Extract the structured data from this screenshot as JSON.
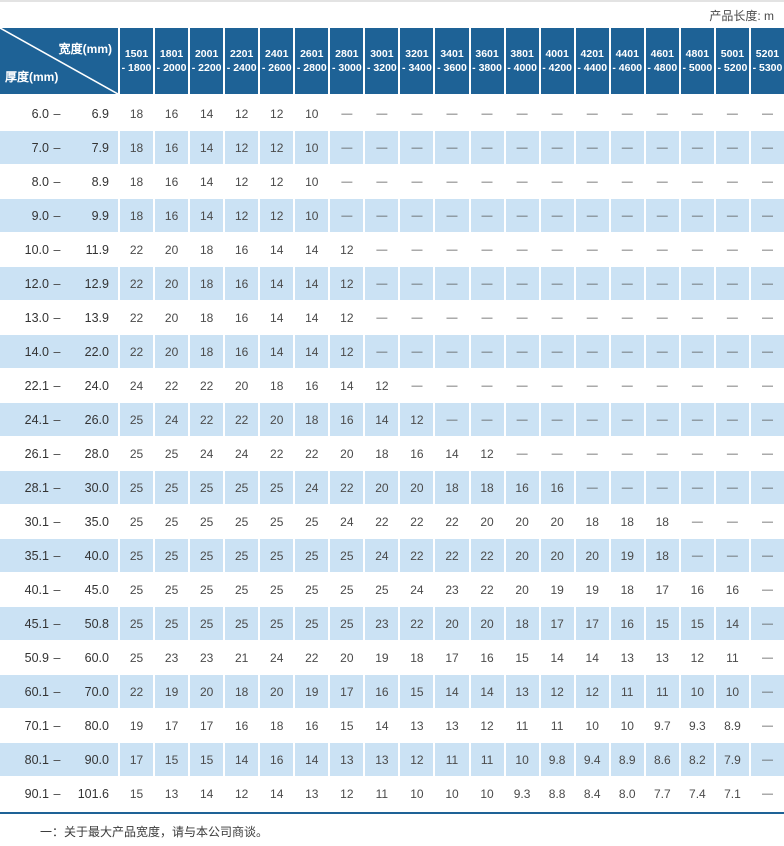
{
  "top_note": "产品长度: m",
  "footnote": "一：关于最大产品宽度，请与本公司商谈。",
  "colors": {
    "header_bg": "#1e6296",
    "row_alt_bg": "#cbe2f4",
    "accent_border": "#1e6296"
  },
  "table": {
    "width_label": "宽度(mm)",
    "thickness_label": "厚度(mm)",
    "dash": "—",
    "columns": [
      {
        "from": "1501",
        "to": "1800"
      },
      {
        "from": "1801",
        "to": "2000"
      },
      {
        "from": "2001",
        "to": "2200"
      },
      {
        "from": "2201",
        "to": "2400"
      },
      {
        "from": "2401",
        "to": "2600"
      },
      {
        "from": "2601",
        "to": "2800"
      },
      {
        "from": "2801",
        "to": "3000"
      },
      {
        "from": "3001",
        "to": "3200"
      },
      {
        "from": "3201",
        "to": "3400"
      },
      {
        "from": "3401",
        "to": "3600"
      },
      {
        "from": "3601",
        "to": "3800"
      },
      {
        "from": "3801",
        "to": "4000"
      },
      {
        "from": "4001",
        "to": "4200"
      },
      {
        "from": "4201",
        "to": "4400"
      },
      {
        "from": "4401",
        "to": "4600"
      },
      {
        "from": "4601",
        "to": "4800"
      },
      {
        "from": "4801",
        "to": "5000"
      },
      {
        "from": "5001",
        "to": "5200"
      },
      {
        "from": "5201",
        "to": "5300"
      }
    ],
    "rows": [
      {
        "lo": "6.0",
        "hi": "6.9",
        "values": [
          "18",
          "16",
          "14",
          "12",
          "12",
          "10",
          "—",
          "—",
          "—",
          "—",
          "—",
          "—",
          "—",
          "—",
          "—",
          "—",
          "—",
          "—",
          "—"
        ]
      },
      {
        "lo": "7.0",
        "hi": "7.9",
        "values": [
          "18",
          "16",
          "14",
          "12",
          "12",
          "10",
          "—",
          "—",
          "—",
          "—",
          "—",
          "—",
          "—",
          "—",
          "—",
          "—",
          "—",
          "—",
          "—"
        ]
      },
      {
        "lo": "8.0",
        "hi": "8.9",
        "values": [
          "18",
          "16",
          "14",
          "12",
          "12",
          "10",
          "—",
          "—",
          "—",
          "—",
          "—",
          "—",
          "—",
          "—",
          "—",
          "—",
          "—",
          "—",
          "—"
        ]
      },
      {
        "lo": "9.0",
        "hi": "9.9",
        "values": [
          "18",
          "16",
          "14",
          "12",
          "12",
          "10",
          "—",
          "—",
          "—",
          "—",
          "—",
          "—",
          "—",
          "—",
          "—",
          "—",
          "—",
          "—",
          "—"
        ]
      },
      {
        "lo": "10.0",
        "hi": "11.9",
        "values": [
          "22",
          "20",
          "18",
          "16",
          "14",
          "14",
          "12",
          "—",
          "—",
          "—",
          "—",
          "—",
          "—",
          "—",
          "—",
          "—",
          "—",
          "—",
          "—"
        ]
      },
      {
        "lo": "12.0",
        "hi": "12.9",
        "values": [
          "22",
          "20",
          "18",
          "16",
          "14",
          "14",
          "12",
          "—",
          "—",
          "—",
          "—",
          "—",
          "—",
          "—",
          "—",
          "—",
          "—",
          "—",
          "—"
        ]
      },
      {
        "lo": "13.0",
        "hi": "13.9",
        "values": [
          "22",
          "20",
          "18",
          "16",
          "14",
          "14",
          "12",
          "—",
          "—",
          "—",
          "—",
          "—",
          "—",
          "—",
          "—",
          "—",
          "—",
          "—",
          "—"
        ]
      },
      {
        "lo": "14.0",
        "hi": "22.0",
        "values": [
          "22",
          "20",
          "18",
          "16",
          "14",
          "14",
          "12",
          "—",
          "—",
          "—",
          "—",
          "—",
          "—",
          "—",
          "—",
          "—",
          "—",
          "—",
          "—"
        ]
      },
      {
        "lo": "22.1",
        "hi": "24.0",
        "values": [
          "24",
          "22",
          "22",
          "20",
          "18",
          "16",
          "14",
          "12",
          "—",
          "—",
          "—",
          "—",
          "—",
          "—",
          "—",
          "—",
          "—",
          "—",
          "—"
        ]
      },
      {
        "lo": "24.1",
        "hi": "26.0",
        "values": [
          "25",
          "24",
          "22",
          "22",
          "20",
          "18",
          "16",
          "14",
          "12",
          "—",
          "—",
          "—",
          "—",
          "—",
          "—",
          "—",
          "—",
          "—",
          "—"
        ]
      },
      {
        "lo": "26.1",
        "hi": "28.0",
        "values": [
          "25",
          "25",
          "24",
          "24",
          "22",
          "22",
          "20",
          "18",
          "16",
          "14",
          "12",
          "—",
          "—",
          "—",
          "—",
          "—",
          "—",
          "—",
          "—"
        ]
      },
      {
        "lo": "28.1",
        "hi": "30.0",
        "values": [
          "25",
          "25",
          "25",
          "25",
          "25",
          "24",
          "22",
          "20",
          "20",
          "18",
          "18",
          "16",
          "16",
          "—",
          "—",
          "—",
          "—",
          "—",
          "—"
        ]
      },
      {
        "lo": "30.1",
        "hi": "35.0",
        "values": [
          "25",
          "25",
          "25",
          "25",
          "25",
          "25",
          "24",
          "22",
          "22",
          "22",
          "20",
          "20",
          "20",
          "18",
          "18",
          "18",
          "—",
          "—",
          "—"
        ]
      },
      {
        "lo": "35.1",
        "hi": "40.0",
        "values": [
          "25",
          "25",
          "25",
          "25",
          "25",
          "25",
          "25",
          "24",
          "22",
          "22",
          "22",
          "20",
          "20",
          "20",
          "19",
          "18",
          "—",
          "—",
          "—"
        ]
      },
      {
        "lo": "40.1",
        "hi": "45.0",
        "values": [
          "25",
          "25",
          "25",
          "25",
          "25",
          "25",
          "25",
          "25",
          "24",
          "23",
          "22",
          "20",
          "19",
          "19",
          "18",
          "17",
          "16",
          "16",
          "—"
        ]
      },
      {
        "lo": "45.1",
        "hi": "50.8",
        "values": [
          "25",
          "25",
          "25",
          "25",
          "25",
          "25",
          "25",
          "23",
          "22",
          "20",
          "20",
          "18",
          "17",
          "17",
          "16",
          "15",
          "15",
          "14",
          "—"
        ]
      },
      {
        "lo": "50.9",
        "hi": "60.0",
        "values": [
          "25",
          "23",
          "23",
          "21",
          "24",
          "22",
          "20",
          "19",
          "18",
          "17",
          "16",
          "15",
          "14",
          "14",
          "13",
          "13",
          "12",
          "11",
          "—"
        ]
      },
      {
        "lo": "60.1",
        "hi": "70.0",
        "values": [
          "22",
          "19",
          "20",
          "18",
          "20",
          "19",
          "17",
          "16",
          "15",
          "14",
          "14",
          "13",
          "12",
          "12",
          "11",
          "11",
          "10",
          "10",
          "—"
        ]
      },
      {
        "lo": "70.1",
        "hi": "80.0",
        "values": [
          "19",
          "17",
          "17",
          "16",
          "18",
          "16",
          "15",
          "14",
          "13",
          "13",
          "12",
          "11",
          "11",
          "10",
          "10",
          "9.7",
          "9.3",
          "8.9",
          "—"
        ]
      },
      {
        "lo": "80.1",
        "hi": "90.0",
        "values": [
          "17",
          "15",
          "15",
          "14",
          "16",
          "14",
          "13",
          "13",
          "12",
          "11",
          "11",
          "10",
          "9.8",
          "9.4",
          "8.9",
          "8.6",
          "8.2",
          "7.9",
          "—"
        ]
      },
      {
        "lo": "90.1",
        "hi": "101.6",
        "values": [
          "15",
          "13",
          "14",
          "12",
          "14",
          "13",
          "12",
          "11",
          "10",
          "10",
          "10",
          "9.3",
          "8.8",
          "8.4",
          "8.0",
          "7.7",
          "7.4",
          "7.1",
          "—"
        ]
      }
    ]
  }
}
